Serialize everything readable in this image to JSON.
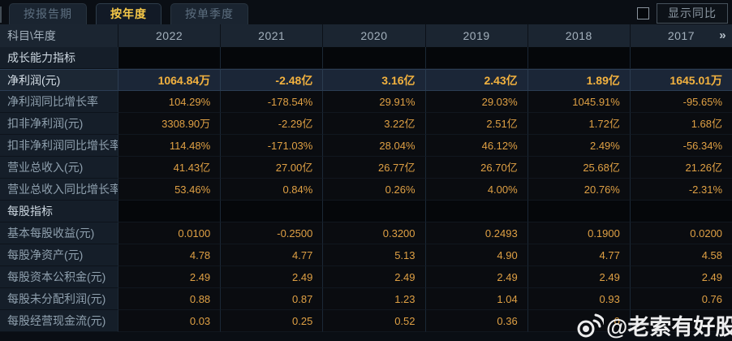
{
  "tabs": [
    {
      "label": "按报告期",
      "active": false
    },
    {
      "label": "按年度",
      "active": true
    },
    {
      "label": "按单季度",
      "active": false
    }
  ],
  "controls": {
    "compare_label": "显示同比",
    "checkbox_checked": false
  },
  "table": {
    "corner_label": "科目\\年度",
    "years": [
      "2022",
      "2021",
      "2020",
      "2019",
      "2018",
      "2017"
    ],
    "more_icon": "»",
    "rows": [
      {
        "type": "section",
        "highlight": false,
        "label": "成长能力指标",
        "values": [
          "",
          "",
          "",
          "",
          "",
          ""
        ]
      },
      {
        "type": "data",
        "highlight": true,
        "label": "净利润(元)",
        "values": [
          "1064.84万",
          "-2.48亿",
          "3.16亿",
          "2.43亿",
          "1.89亿",
          "1645.01万"
        ]
      },
      {
        "type": "data",
        "highlight": false,
        "label": "净利润同比增长率",
        "values": [
          "104.29%",
          "-178.54%",
          "29.91%",
          "29.03%",
          "1045.91%",
          "-95.65%"
        ]
      },
      {
        "type": "data",
        "highlight": false,
        "label": "扣非净利润(元)",
        "values": [
          "3308.90万",
          "-2.29亿",
          "3.22亿",
          "2.51亿",
          "1.72亿",
          "1.68亿"
        ]
      },
      {
        "type": "data",
        "highlight": false,
        "label": "扣非净利润同比增长率",
        "values": [
          "114.48%",
          "-171.03%",
          "28.04%",
          "46.12%",
          "2.49%",
          "-56.34%"
        ]
      },
      {
        "type": "data",
        "highlight": false,
        "label": "营业总收入(元)",
        "values": [
          "41.43亿",
          "27.00亿",
          "26.77亿",
          "26.70亿",
          "25.68亿",
          "21.26亿"
        ]
      },
      {
        "type": "data",
        "highlight": false,
        "label": "营业总收入同比增长率",
        "values": [
          "53.46%",
          "0.84%",
          "0.26%",
          "4.00%",
          "20.76%",
          "-2.31%"
        ]
      },
      {
        "type": "section",
        "highlight": false,
        "label": "每股指标",
        "values": [
          "",
          "",
          "",
          "",
          "",
          ""
        ]
      },
      {
        "type": "data",
        "highlight": false,
        "label": "基本每股收益(元)",
        "values": [
          "0.0100",
          "-0.2500",
          "0.3200",
          "0.2493",
          "0.1900",
          "0.0200"
        ]
      },
      {
        "type": "data",
        "highlight": false,
        "label": "每股净资产(元)",
        "values": [
          "4.78",
          "4.77",
          "5.13",
          "4.90",
          "4.77",
          "4.58"
        ]
      },
      {
        "type": "data",
        "highlight": false,
        "label": "每股资本公积金(元)",
        "values": [
          "2.49",
          "2.49",
          "2.49",
          "2.49",
          "2.49",
          "2.49"
        ]
      },
      {
        "type": "data",
        "highlight": false,
        "label": "每股未分配利润(元)",
        "values": [
          "0.88",
          "0.87",
          "1.23",
          "1.04",
          "0.93",
          "0.76"
        ]
      },
      {
        "type": "data",
        "highlight": false,
        "label": "每股经营现金流(元)",
        "values": [
          "0.03",
          "0.25",
          "0.52",
          "0.36",
          "0",
          ""
        ]
      }
    ]
  },
  "watermark": {
    "icon": "weibo-icon",
    "text": "@老索有好股"
  },
  "colors": {
    "accent_gold": "#f7c948",
    "value_orange": "#e09a3e",
    "highlight_value": "#f3b23f",
    "highlight_row_bg": "#1b2637",
    "header_bg": "#1b2531",
    "label_col_bg": "#151e29",
    "data_cell_bg": "#0a0c10",
    "page_bg": "#0a0e14"
  }
}
